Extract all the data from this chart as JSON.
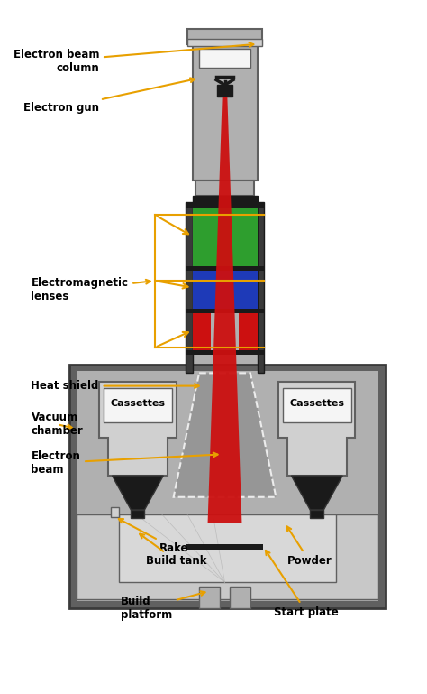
{
  "bg_color": "#ffffff",
  "col_gray": "#b0b0b0",
  "col_dark_gray": "#606060",
  "col_light_gray": "#d0d0d0",
  "col_black": "#1a1a1a",
  "col_green": "#2e9e2e",
  "col_blue": "#1e3ab8",
  "col_red": "#cc1010",
  "col_white": "#f5f5f5",
  "col_arrow": "#e8a000",
  "col_charcoal": "#3a3a3a",
  "annotation_color": "#e8a000",
  "labels": {
    "electron_beam_column": "Electron beam\ncolumn",
    "electron_gun": "Electron gun",
    "electromagnetic_lenses": "Electromagnetic\nlenses",
    "heat_shield": "Heat shield",
    "vacuum_chamber": "Vacuum\nchamber",
    "electron_beam": "Electron\nbeam",
    "cassettes_left": "Cassettes",
    "cassettes_right": "Cassettes",
    "rake": "Rake",
    "build_tank": "Build tank",
    "build_platform": "Build\nplatform",
    "powder": "Powder",
    "start_plate": "Start plate"
  }
}
